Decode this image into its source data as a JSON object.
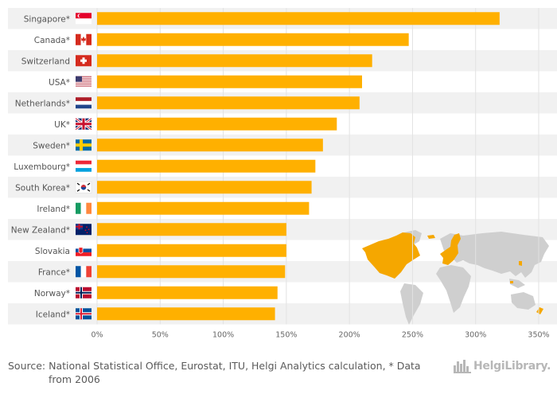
{
  "chart_data": {
    "type": "bar",
    "orientation": "horizontal",
    "title": "",
    "xlabel": "",
    "ylabel": "",
    "categories": [
      "Singapore*",
      "Canada*",
      "Switzerland",
      "USA*",
      "Netherlands*",
      "UK*",
      "Sweden*",
      "Luxembourg*",
      "South Korea*",
      "Ireland*",
      "New Zealand*",
      "Slovakia",
      "France*",
      "Norway*",
      "Iceland*"
    ],
    "flags": [
      "singapore",
      "canada",
      "switzerland",
      "usa",
      "netherlands",
      "uk",
      "sweden",
      "luxembourg",
      "south-korea",
      "ireland",
      "new-zealand",
      "slovakia",
      "france",
      "norway",
      "iceland"
    ],
    "values": [
      319,
      247,
      218,
      210,
      208,
      190,
      179,
      173,
      170,
      168,
      150,
      150,
      149,
      143,
      141
    ],
    "value_unit": "%",
    "xlim": [
      0,
      350
    ],
    "ticks": [
      0,
      50,
      100,
      150,
      200,
      250,
      300,
      350
    ],
    "tick_labels": [
      "0%",
      "50%",
      "100%",
      "150%",
      "200%",
      "250%",
      "300%",
      "350%"
    ],
    "grid": true,
    "colors": {
      "bar": "#FFB000",
      "row_band": "#F1F1F1",
      "map_highlight": "#F5A700",
      "map_land": "#CFCFCF"
    }
  },
  "footer": {
    "source_line1": "Source: National Statistical Office, Eurostat, ITU, Helgi Analytics calculation, * Data",
    "source_line2": "from 2006",
    "brand": "HelgiLibrary."
  }
}
